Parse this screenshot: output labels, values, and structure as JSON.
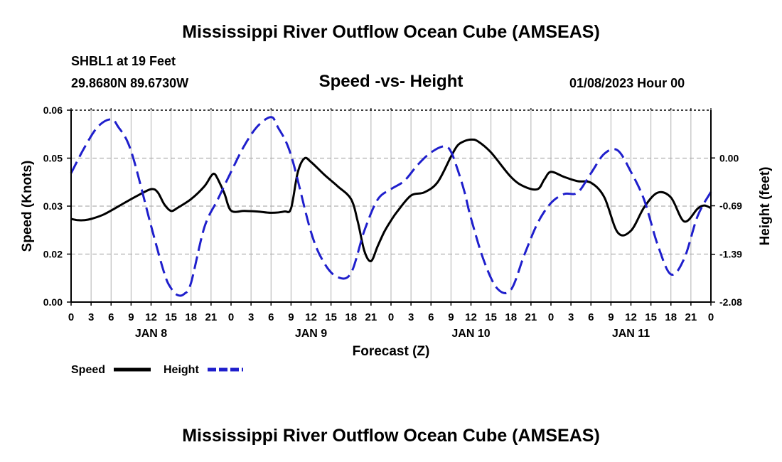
{
  "header": {
    "title": "Mississippi River Outflow Ocean Cube (AMSEAS)",
    "station": "SHBL1 at 19 Feet",
    "coordinates": "29.8680N  89.6730W",
    "subtitle": "Speed -vs- Height",
    "datetime": "01/08/2023 Hour 00"
  },
  "footer": {
    "title": "Mississippi River Outflow Ocean Cube (AMSEAS)"
  },
  "colors": {
    "speed": "#000000",
    "height": "#1f1fcc",
    "grid": "#b0b0b0"
  },
  "chart_data": {
    "type": "line",
    "title": "Speed -vs- Height",
    "xlabel": "Forecast (Z)",
    "ylabel_left": "Speed (Knots)",
    "ylabel_right": "Height (feet)",
    "xlim": [
      0,
      96
    ],
    "x_tick_step": 3,
    "x_tick_labels": [
      "0",
      "3",
      "6",
      "9",
      "12",
      "15",
      "18",
      "21",
      "0",
      "3",
      "6",
      "9",
      "12",
      "15",
      "18",
      "21",
      "0",
      "3",
      "6",
      "9",
      "12",
      "15",
      "18",
      "21",
      "0",
      "3",
      "6",
      "9",
      "12",
      "15",
      "18",
      "21",
      "0"
    ],
    "day_labels": [
      {
        "label": "JAN 8",
        "x": 12
      },
      {
        "label": "JAN 9",
        "x": 36
      },
      {
        "label": "JAN 10",
        "x": 60
      },
      {
        "label": "JAN 11",
        "x": 84
      }
    ],
    "ylim_left": [
      0.0,
      0.06
    ],
    "left_ticks": [
      {
        "value": 0.0,
        "label": "0.00"
      },
      {
        "value": 0.015,
        "label": "0.02"
      },
      {
        "value": 0.03,
        "label": "0.03"
      },
      {
        "value": 0.045,
        "label": "0.05"
      },
      {
        "value": 0.06,
        "label": "0.06"
      }
    ],
    "ylim_right": [
      -2.08,
      0.69
    ],
    "right_ticks": [
      {
        "value": 0.0,
        "label": "0.00"
      },
      {
        "value": -0.69,
        "label": "-0.69"
      },
      {
        "value": -1.39,
        "label": "-1.39"
      },
      {
        "value": -2.08,
        "label": "-2.08"
      }
    ],
    "grid": true,
    "legend_position": "bottom-left",
    "series": [
      {
        "name": "Speed",
        "axis": "left",
        "style": "solid",
        "x": [
          0,
          1,
          2,
          3,
          5,
          8,
          10,
          12,
          13,
          14,
          15,
          16,
          18,
          20,
          21,
          21.5,
          22,
          23,
          24,
          26,
          28,
          30,
          32,
          33,
          34,
          35,
          36,
          38,
          40,
          42,
          43,
          44,
          45,
          46,
          47,
          48,
          49,
          51,
          53,
          55,
          57,
          58,
          59,
          60,
          61,
          63,
          66,
          68,
          70,
          71,
          72,
          74,
          76,
          78,
          80,
          82,
          84,
          86,
          88,
          90,
          92,
          94,
          95,
          96
        ],
        "y": [
          0.026,
          0.0256,
          0.0256,
          0.026,
          0.0275,
          0.031,
          0.0333,
          0.0353,
          0.0343,
          0.0305,
          0.0285,
          0.0295,
          0.0322,
          0.0362,
          0.0394,
          0.0401,
          0.0385,
          0.034,
          0.0286,
          0.0285,
          0.0283,
          0.0279,
          0.0283,
          0.0293,
          0.0405,
          0.0449,
          0.0438,
          0.0398,
          0.0362,
          0.0322,
          0.0253,
          0.016,
          0.0128,
          0.0175,
          0.022,
          0.0255,
          0.0285,
          0.0333,
          0.0343,
          0.0375,
          0.0455,
          0.049,
          0.0503,
          0.0508,
          0.0503,
          0.0468,
          0.0391,
          0.0361,
          0.0353,
          0.0383,
          0.0407,
          0.0391,
          0.0378,
          0.0373,
          0.0328,
          0.0218,
          0.0223,
          0.0297,
          0.0342,
          0.0327,
          0.0252,
          0.0292,
          0.0302,
          0.0294
        ]
      },
      {
        "name": "Height",
        "axis": "right",
        "style": "dashed",
        "x": [
          0,
          2,
          4,
          6,
          7,
          9,
          12,
          14,
          15,
          16,
          17,
          18,
          20,
          22,
          24,
          26,
          28,
          30,
          31,
          33,
          36,
          38,
          40,
          42,
          44,
          46,
          48,
          50,
          52,
          54,
          56,
          57,
          58,
          59,
          60,
          62,
          64,
          66,
          68,
          70,
          72,
          74,
          76,
          78,
          80,
          82,
          84,
          86,
          88,
          90,
          92,
          94,
          96
        ],
        "y": [
          -0.22,
          0.15,
          0.45,
          0.56,
          0.46,
          0.1,
          -0.98,
          -1.67,
          -1.88,
          -1.98,
          -1.96,
          -1.8,
          -1.0,
          -0.6,
          -0.2,
          0.18,
          0.46,
          0.59,
          0.45,
          0.04,
          -1.07,
          -1.52,
          -1.72,
          -1.66,
          -1.05,
          -0.6,
          -0.45,
          -0.33,
          -0.1,
          0.08,
          0.17,
          0.09,
          -0.17,
          -0.48,
          -0.87,
          -1.5,
          -1.89,
          -1.9,
          -1.4,
          -0.94,
          -0.65,
          -0.52,
          -0.5,
          -0.22,
          0.06,
          0.11,
          -0.2,
          -0.61,
          -1.25,
          -1.68,
          -1.45,
          -0.84,
          -0.49
        ]
      }
    ]
  }
}
